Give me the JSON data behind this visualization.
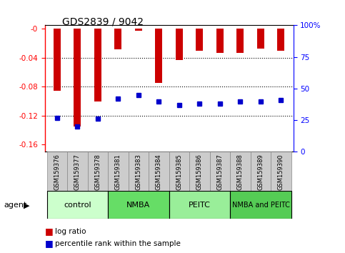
{
  "title": "GDS2839 / 9042",
  "categories": [
    "GSM159376",
    "GSM159377",
    "GSM159378",
    "GSM159381",
    "GSM159383",
    "GSM159384",
    "GSM159385",
    "GSM159386",
    "GSM159387",
    "GSM159388",
    "GSM159389",
    "GSM159390"
  ],
  "log_ratios": [
    -0.086,
    -0.135,
    -0.1,
    -0.028,
    -0.003,
    -0.075,
    -0.043,
    -0.03,
    -0.033,
    -0.033,
    -0.027,
    -0.03
  ],
  "percentile_ranks": [
    27,
    20,
    26,
    42,
    45,
    40,
    37,
    38,
    38,
    40,
    40,
    41
  ],
  "groups": [
    {
      "label": "control",
      "start": 0,
      "end": 3,
      "color": "#ccffcc"
    },
    {
      "label": "NMBA",
      "start": 3,
      "end": 6,
      "color": "#66dd66"
    },
    {
      "label": "PEITC",
      "start": 6,
      "end": 9,
      "color": "#99ee99"
    },
    {
      "label": "NMBA and PEITC",
      "start": 9,
      "end": 12,
      "color": "#55cc55"
    }
  ],
  "bar_color": "#cc0000",
  "dot_color": "#0000cc",
  "ylim_left": [
    -0.17,
    0.005
  ],
  "ylim_right": [
    0,
    100
  ],
  "yticks_left": [
    0,
    -0.04,
    -0.08,
    -0.12,
    -0.16
  ],
  "yticks_right": [
    0,
    25,
    50,
    75,
    100
  ],
  "legend_items": [
    {
      "label": "log ratio",
      "color": "#cc0000"
    },
    {
      "label": "percentile rank within the sample",
      "color": "#0000cc"
    }
  ],
  "agent_label": "agent"
}
